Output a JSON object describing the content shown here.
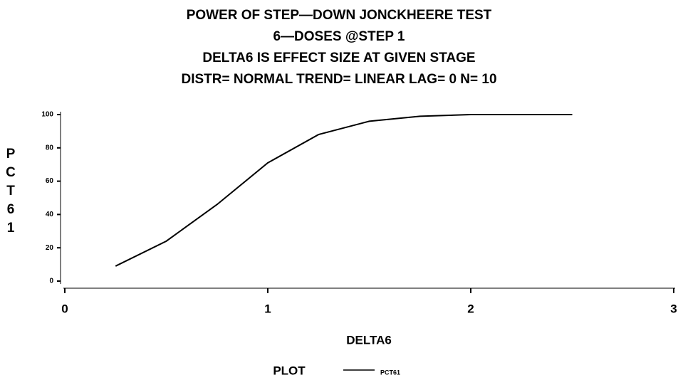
{
  "chart_data": {
    "type": "line",
    "title": [
      "POWER OF STEP—DOWN JONCKHEERE TEST",
      "6—DOSES @STEP 1",
      "DELTA6 IS EFFECT SIZE AT GIVEN STAGE",
      "DISTR= NORMAL TREND= LINEAR LAG= 0 N= 10"
    ],
    "xlabel": "DELTA6",
    "ylabel": "PCT61",
    "x": [
      0.25,
      0.5,
      0.75,
      1,
      1.25,
      1.5,
      1.75,
      2,
      2.25,
      2.5
    ],
    "series": [
      {
        "name": "PCT61",
        "color": "#000000",
        "values": [
          9,
          24,
          46,
          71,
          88,
          96,
          99,
          100,
          100,
          100
        ]
      }
    ],
    "xlim": [
      0,
      3
    ],
    "xticks": [
      0,
      1,
      2,
      3
    ],
    "ylim": [
      0,
      100
    ],
    "yticks": [
      0,
      20,
      40,
      60,
      80,
      100
    ],
    "legend_title": "PLOT",
    "legend": "bottom"
  }
}
